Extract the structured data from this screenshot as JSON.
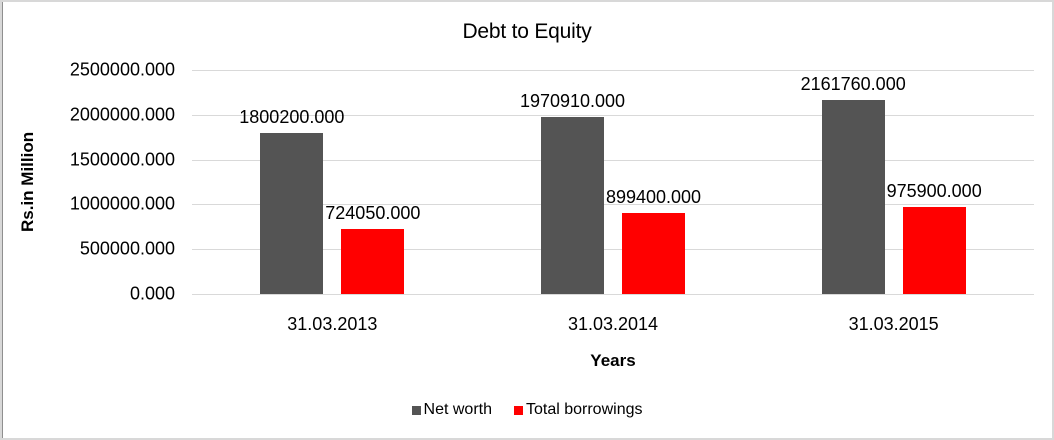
{
  "chart_data": {
    "type": "bar",
    "title": "Debt to Equity",
    "xlabel": "Years",
    "ylabel": "Rs.in Million",
    "categories": [
      "31.03.2013",
      "31.03.2014",
      "31.03.2015"
    ],
    "series": [
      {
        "name": "Net worth",
        "color": "#545454",
        "values": [
          1800200,
          1970910,
          2161760
        ],
        "labels": [
          "1800200.000",
          "1970910.000",
          "2161760.000"
        ]
      },
      {
        "name": "Total borrowings",
        "color": "#ff0000",
        "values": [
          724050,
          899400,
          975900
        ],
        "labels": [
          "724050.000",
          "899400.000",
          "975900.000"
        ]
      }
    ],
    "yticks": [
      "2500000.000",
      "2000000.000",
      "1500000.000",
      "1000000.000",
      "500000.000",
      "0.000"
    ],
    "ylim": [
      0,
      2500000
    ],
    "grid": true,
    "legend_position": "bottom",
    "gridline_color": "#d9d9d9",
    "background_color": "#ffffff"
  }
}
